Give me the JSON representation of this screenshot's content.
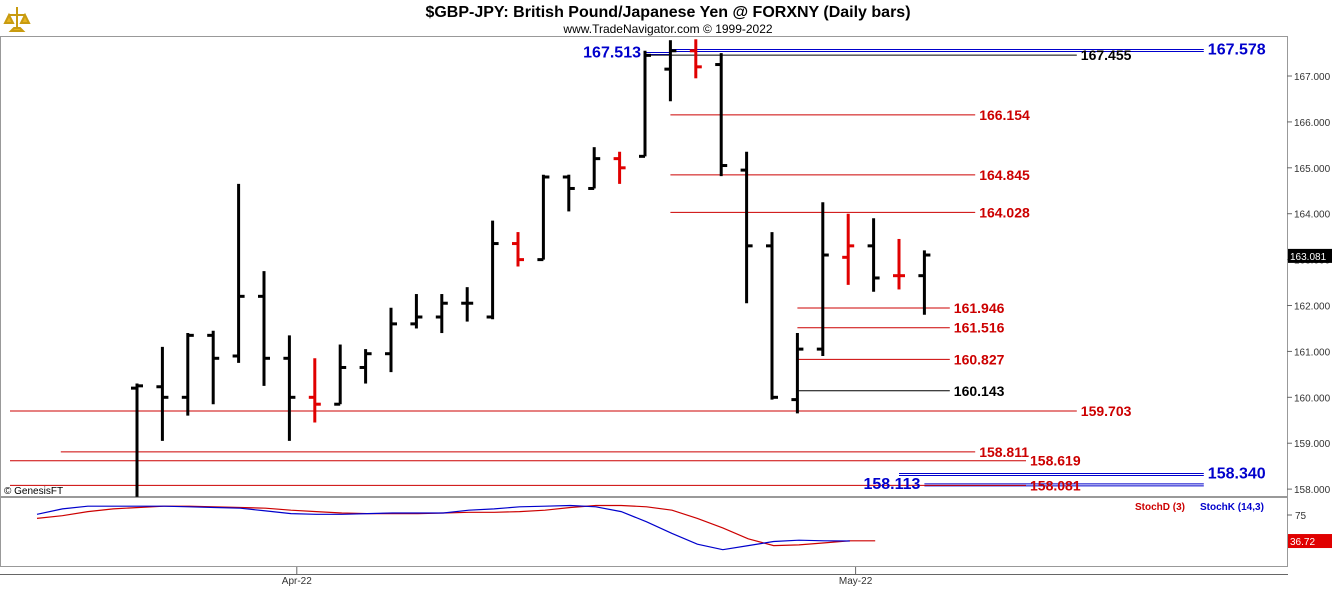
{
  "header": {
    "title": "$GBP-JPY:  British Pound/Japanese Yen @ FORXNY  (Daily bars)",
    "subtitle": "www.TradeNavigator.com © 1999-2022",
    "logo_icon": "trade-navigator-logo-icon"
  },
  "footer": {
    "credit": "© GenesisFT"
  },
  "chart_data": {
    "type": "ohlc",
    "price_axis": {
      "ylim": [
        157.85,
        167.85
      ],
      "ticks": [
        "158.000",
        "159.000",
        "160.000",
        "161.000",
        "162.000",
        "163.000",
        "164.000",
        "165.000",
        "166.000",
        "167.000"
      ],
      "tick_values": [
        158,
        159,
        160,
        161,
        162,
        163,
        164,
        165,
        166,
        167
      ],
      "last_price": 163.081,
      "last_price_label": "163.081"
    },
    "x_labels": [
      {
        "label": "Apr-22",
        "bar_index": 7
      },
      {
        "label": "May-22",
        "bar_index": 29
      }
    ],
    "bars": [
      {
        "open": 160.2,
        "high": 160.3,
        "low": 157.83,
        "close": 160.25,
        "color": "black"
      },
      {
        "open": 160.23,
        "high": 161.1,
        "low": 159.05,
        "close": 160.0,
        "color": "black"
      },
      {
        "open": 160.0,
        "high": 161.4,
        "low": 159.6,
        "close": 161.35,
        "color": "black"
      },
      {
        "open": 161.35,
        "high": 161.45,
        "low": 159.85,
        "close": 160.85,
        "color": "black"
      },
      {
        "open": 160.9,
        "high": 164.65,
        "low": 160.75,
        "close": 162.2,
        "color": "black"
      },
      {
        "open": 162.2,
        "high": 162.75,
        "low": 160.25,
        "close": 160.85,
        "color": "black"
      },
      {
        "open": 160.85,
        "high": 161.35,
        "low": 159.05,
        "close": 160.0,
        "color": "black"
      },
      {
        "open": 160.0,
        "high": 160.85,
        "low": 159.45,
        "close": 159.85,
        "color": "red"
      },
      {
        "open": 159.85,
        "high": 161.15,
        "low": 159.85,
        "close": 160.65,
        "color": "black"
      },
      {
        "open": 160.65,
        "high": 161.05,
        "low": 160.3,
        "close": 160.95,
        "color": "black"
      },
      {
        "open": 160.95,
        "high": 161.95,
        "low": 160.55,
        "close": 161.6,
        "color": "black"
      },
      {
        "open": 161.6,
        "high": 162.25,
        "low": 161.5,
        "close": 161.75,
        "color": "black"
      },
      {
        "open": 161.75,
        "high": 162.25,
        "low": 161.4,
        "close": 162.05,
        "color": "black"
      },
      {
        "open": 162.05,
        "high": 162.4,
        "low": 161.65,
        "close": 162.05,
        "color": "black"
      },
      {
        "open": 161.75,
        "high": 163.85,
        "low": 161.7,
        "close": 163.35,
        "color": "black"
      },
      {
        "open": 163.35,
        "high": 163.6,
        "low": 162.85,
        "close": 163.0,
        "color": "red"
      },
      {
        "open": 163.0,
        "high": 164.85,
        "low": 163.0,
        "close": 164.8,
        "color": "black"
      },
      {
        "open": 164.8,
        "high": 164.85,
        "low": 164.05,
        "close": 164.55,
        "color": "black"
      },
      {
        "open": 164.55,
        "high": 165.45,
        "low": 164.55,
        "close": 165.2,
        "color": "black"
      },
      {
        "open": 165.2,
        "high": 165.35,
        "low": 164.65,
        "close": 165.0,
        "color": "red"
      },
      {
        "open": 165.25,
        "high": 167.55,
        "low": 165.25,
        "close": 167.45,
        "color": "black"
      },
      {
        "open": 167.15,
        "high": 167.78,
        "low": 166.45,
        "close": 167.55,
        "color": "black"
      },
      {
        "open": 167.55,
        "high": 167.8,
        "low": 166.95,
        "close": 167.2,
        "color": "red"
      },
      {
        "open": 167.25,
        "high": 167.5,
        "low": 164.82,
        "close": 165.05,
        "color": "black"
      },
      {
        "open": 164.95,
        "high": 165.35,
        "low": 162.05,
        "close": 163.3,
        "color": "black"
      },
      {
        "open": 163.3,
        "high": 163.6,
        "low": 159.95,
        "close": 160.0,
        "color": "black"
      },
      {
        "open": 159.95,
        "high": 161.4,
        "low": 159.65,
        "close": 161.05,
        "color": "black"
      },
      {
        "open": 161.05,
        "high": 164.25,
        "low": 160.9,
        "close": 163.1,
        "color": "black"
      },
      {
        "open": 163.05,
        "high": 164.0,
        "low": 162.45,
        "close": 163.3,
        "color": "red"
      },
      {
        "open": 163.3,
        "high": 163.9,
        "low": 162.3,
        "close": 162.6,
        "color": "black"
      },
      {
        "open": 162.65,
        "high": 163.45,
        "low": 162.35,
        "close": 162.65,
        "color": "red"
      },
      {
        "open": 162.65,
        "high": 163.2,
        "low": 161.8,
        "close": 163.1,
        "color": "black"
      }
    ],
    "levels": [
      {
        "value": 167.513,
        "label": "167.513",
        "color": "#0000cc",
        "style": "blue-left",
        "from_bar": 20,
        "to_bar": 21
      },
      {
        "value": 167.455,
        "label": "167.455",
        "color": "#000000",
        "style": "black",
        "from_bar": 20,
        "to_bar": 37
      },
      {
        "value": 167.578,
        "label": "167.578",
        "color": "#0000cc",
        "style": "blue-right",
        "from_bar": 21,
        "to_bar": 42
      },
      {
        "value": 166.154,
        "label": "166.154",
        "color": "#cc0000",
        "style": "red",
        "from_bar": 21,
        "to_bar": 33
      },
      {
        "value": 164.845,
        "label": "164.845",
        "color": "#cc0000",
        "style": "red",
        "from_bar": 21,
        "to_bar": 33
      },
      {
        "value": 164.028,
        "label": "164.028",
        "color": "#cc0000",
        "style": "red",
        "from_bar": 21,
        "to_bar": 33
      },
      {
        "value": 161.946,
        "label": "161.946",
        "color": "#cc0000",
        "style": "red",
        "from_bar": 26,
        "to_bar": 32
      },
      {
        "value": 161.516,
        "label": "161.516",
        "color": "#cc0000",
        "style": "red",
        "from_bar": 26,
        "to_bar": 32
      },
      {
        "value": 160.827,
        "label": "160.827",
        "color": "#cc0000",
        "style": "red",
        "from_bar": 26,
        "to_bar": 32
      },
      {
        "value": 160.143,
        "label": "160.143",
        "color": "#000000",
        "style": "black",
        "from_bar": 26,
        "to_bar": 32
      },
      {
        "value": 159.703,
        "label": "159.703",
        "color": "#cc0000",
        "style": "red",
        "from_bar": -5,
        "to_bar": 37
      },
      {
        "value": 158.811,
        "label": "158.811",
        "color": "#cc0000",
        "style": "red",
        "from_bar": -3,
        "to_bar": 33
      },
      {
        "value": 158.619,
        "label": "158.619",
        "color": "#cc0000",
        "style": "red",
        "from_bar": -5,
        "to_bar": 35
      },
      {
        "value": 158.34,
        "label": "158.340",
        "color": "#0000cc",
        "style": "blue-right",
        "from_bar": 30,
        "to_bar": 42
      },
      {
        "value": 158.113,
        "label": "158.113",
        "color": "#0000cc",
        "style": "blue-left",
        "from_bar": 31,
        "to_bar": 42
      },
      {
        "value": 158.081,
        "label": "158.081",
        "color": "#cc0000",
        "style": "red",
        "from_bar": -5,
        "to_bar": 35
      }
    ],
    "stochastic": {
      "ylim": [
        0,
        100
      ],
      "tick_labels": [
        "75"
      ],
      "tick_values": [
        75
      ],
      "last_value": 36.72,
      "last_value_label": "36.72",
      "legend": [
        {
          "name": "StochD (3)",
          "color": "#cc0000"
        },
        {
          "name": "StochK (14,3)",
          "color": "#0000cc"
        }
      ],
      "stoch_d": [
        70,
        74,
        80,
        84,
        86,
        88,
        88,
        87,
        86,
        85,
        82,
        80,
        78,
        77,
        77,
        77,
        78,
        79,
        79,
        80,
        82,
        86,
        89,
        89,
        87,
        82,
        70,
        56,
        40,
        30,
        31,
        34,
        37,
        37
      ],
      "stoch_k": [
        76,
        84,
        88,
        88,
        88,
        88,
        87,
        86,
        85,
        81,
        77,
        76,
        76,
        77,
        78,
        78,
        78,
        82,
        84,
        87,
        88,
        89,
        87,
        80,
        65,
        48,
        32,
        24,
        30,
        36,
        38,
        37,
        36.72
      ]
    }
  }
}
